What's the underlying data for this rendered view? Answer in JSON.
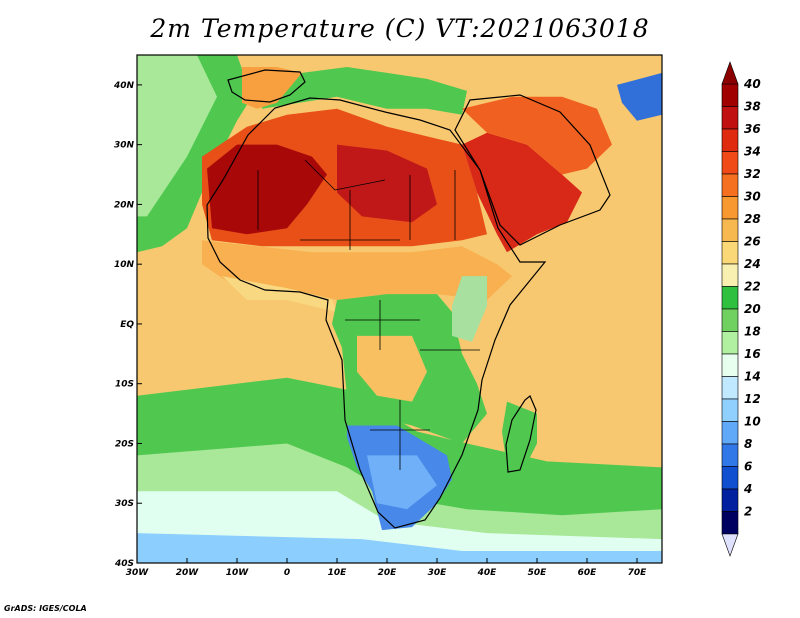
{
  "title": "2m Temperature (C) VT:2021063018",
  "credit": "GrADS: IGES/COLA",
  "map": {
    "lon_range": [
      -30,
      75
    ],
    "lat_range": [
      -40,
      45
    ],
    "lon_ticks": [
      {
        "value": -30,
        "label": "30W"
      },
      {
        "value": -20,
        "label": "20W"
      },
      {
        "value": -10,
        "label": "10W"
      },
      {
        "value": 0,
        "label": "0"
      },
      {
        "value": 10,
        "label": "10E"
      },
      {
        "value": 20,
        "label": "20E"
      },
      {
        "value": 30,
        "label": "30E"
      },
      {
        "value": 40,
        "label": "40E"
      },
      {
        "value": 50,
        "label": "50E"
      },
      {
        "value": 60,
        "label": "60E"
      },
      {
        "value": 70,
        "label": "70E"
      }
    ],
    "lat_ticks": [
      {
        "value": 40,
        "label": "40N"
      },
      {
        "value": 30,
        "label": "30N"
      },
      {
        "value": 20,
        "label": "20N"
      },
      {
        "value": 10,
        "label": "10N"
      },
      {
        "value": 0,
        "label": "EQ"
      },
      {
        "value": -10,
        "label": "10S"
      },
      {
        "value": -20,
        "label": "20S"
      },
      {
        "value": -30,
        "label": "30S"
      },
      {
        "value": -40,
        "label": "40S"
      }
    ]
  },
  "colorbar": {
    "labels": [
      "40",
      "38",
      "36",
      "34",
      "32",
      "30",
      "28",
      "26",
      "24",
      "22",
      "20",
      "18",
      "16",
      "14",
      "12",
      "10",
      "8",
      "6",
      "4",
      "2"
    ],
    "colors_top_to_bottom": [
      "#a00000",
      "#c01010",
      "#e02a10",
      "#f04a18",
      "#f57020",
      "#f89830",
      "#f8b850",
      "#fad878",
      "#f8f0b0",
      "#30c040",
      "#70d060",
      "#b0f0a0",
      "#e8fff0",
      "#c0e8ff",
      "#90d0ff",
      "#60a8f8",
      "#3078e8",
      "#1050d0",
      "#0020a0",
      "#000060"
    ],
    "top_arrow_color": "#8b0000",
    "bottom_arrow_color": "#e0e0ff"
  },
  "regions": [
    {
      "id": "ocean-base",
      "color": "#f8c870",
      "points": [
        [
          -30,
          45
        ],
        [
          75,
          45
        ],
        [
          75,
          -40
        ],
        [
          -30,
          -40
        ]
      ]
    },
    {
      "id": "south-cool-1",
      "color": "#50c850",
      "points": [
        [
          -30,
          -12
        ],
        [
          0,
          -9
        ],
        [
          12,
          -11
        ],
        [
          18,
          -14
        ],
        [
          26,
          -18
        ],
        [
          36,
          -20
        ],
        [
          52,
          -23
        ],
        [
          75,
          -24
        ],
        [
          75,
          -40
        ],
        [
          -30,
          -40
        ]
      ]
    },
    {
      "id": "south-cool-2",
      "color": "#a8e898",
      "points": [
        [
          -30,
          -22
        ],
        [
          0,
          -20
        ],
        [
          12,
          -24
        ],
        [
          22,
          -29
        ],
        [
          36,
          -31
        ],
        [
          55,
          -32
        ],
        [
          75,
          -31
        ],
        [
          75,
          -40
        ],
        [
          -30,
          -40
        ]
      ]
    },
    {
      "id": "south-cool-3",
      "color": "#e0fff0",
      "points": [
        [
          -30,
          -28
        ],
        [
          10,
          -28
        ],
        [
          20,
          -33
        ],
        [
          40,
          -35
        ],
        [
          75,
          -36
        ],
        [
          75,
          -40
        ],
        [
          -30,
          -40
        ]
      ]
    },
    {
      "id": "south-cool-4",
      "color": "#8ccfff",
      "points": [
        [
          -30,
          -35
        ],
        [
          15,
          -36
        ],
        [
          35,
          -38
        ],
        [
          75,
          -38
        ],
        [
          75,
          -40
        ],
        [
          -30,
          -40
        ]
      ]
    },
    {
      "id": "atlantic-north-green",
      "color": "#50c850",
      "points": [
        [
          -30,
          45
        ],
        [
          -10,
          45
        ],
        [
          -7,
          38
        ],
        [
          -10,
          34
        ],
        [
          -16,
          24
        ],
        [
          -20,
          16
        ],
        [
          -25,
          13
        ],
        [
          -30,
          12
        ]
      ]
    },
    {
      "id": "atlantic-north-light",
      "color": "#a8e898",
      "points": [
        [
          -30,
          45
        ],
        [
          -18,
          45
        ],
        [
          -14,
          38
        ],
        [
          -20,
          28
        ],
        [
          -28,
          18
        ],
        [
          -30,
          18
        ]
      ]
    },
    {
      "id": "mediterranean",
      "color": "#50c850",
      "points": [
        [
          -5,
          36
        ],
        [
          10,
          38
        ],
        [
          20,
          36
        ],
        [
          28,
          36
        ],
        [
          35,
          35
        ],
        [
          36,
          39
        ],
        [
          28,
          41
        ],
        [
          20,
          42
        ],
        [
          12,
          43
        ],
        [
          3,
          42
        ],
        [
          -5,
          37
        ]
      ]
    },
    {
      "id": "iberia",
      "color": "#f8a040",
      "points": [
        [
          -9,
          43
        ],
        [
          -2,
          43
        ],
        [
          3,
          42
        ],
        [
          0,
          39
        ],
        [
          -2,
          37
        ],
        [
          -6,
          36
        ],
        [
          -9,
          37
        ]
      ]
    },
    {
      "id": "sahara",
      "color": "#e85018",
      "points": [
        [
          -17,
          28
        ],
        [
          -8,
          33
        ],
        [
          0,
          35
        ],
        [
          10,
          36
        ],
        [
          20,
          33
        ],
        [
          30,
          31
        ],
        [
          35,
          30
        ],
        [
          38,
          22
        ],
        [
          40,
          15
        ],
        [
          35,
          14
        ],
        [
          25,
          13
        ],
        [
          15,
          13
        ],
        [
          5,
          13
        ],
        [
          -5,
          13
        ],
        [
          -15,
          14
        ],
        [
          -17,
          20
        ]
      ]
    },
    {
      "id": "sahara-core-west",
      "color": "#a80808",
      "points": [
        [
          -16,
          26
        ],
        [
          -10,
          30
        ],
        [
          -2,
          30
        ],
        [
          5,
          28
        ],
        [
          8,
          25
        ],
        [
          4,
          20
        ],
        [
          0,
          16
        ],
        [
          -8,
          15
        ],
        [
          -15,
          16
        ]
      ]
    },
    {
      "id": "sahara-core-east",
      "color": "#c01818",
      "points": [
        [
          10,
          30
        ],
        [
          20,
          29
        ],
        [
          28,
          26
        ],
        [
          30,
          20
        ],
        [
          25,
          17
        ],
        [
          15,
          18
        ],
        [
          10,
          22
        ]
      ]
    },
    {
      "id": "arabia",
      "color": "#d82818",
      "points": [
        [
          35,
          30
        ],
        [
          40,
          32
        ],
        [
          48,
          30
        ],
        [
          55,
          25
        ],
        [
          59,
          22
        ],
        [
          56,
          17
        ],
        [
          50,
          15
        ],
        [
          44,
          12
        ],
        [
          42,
          15
        ],
        [
          38,
          22
        ]
      ]
    },
    {
      "id": "mideast-north",
      "color": "#f06020",
      "points": [
        [
          35,
          36
        ],
        [
          45,
          38
        ],
        [
          55,
          38
        ],
        [
          62,
          36
        ],
        [
          65,
          30
        ],
        [
          60,
          26
        ],
        [
          55,
          25
        ],
        [
          48,
          30
        ],
        [
          40,
          32
        ]
      ]
    },
    {
      "id": "sahel",
      "color": "#f8b050",
      "points": [
        [
          -17,
          14
        ],
        [
          5,
          12
        ],
        [
          15,
          12
        ],
        [
          25,
          12
        ],
        [
          35,
          13
        ],
        [
          42,
          10
        ],
        [
          45,
          8
        ],
        [
          40,
          4
        ],
        [
          30,
          5
        ],
        [
          20,
          5
        ],
        [
          10,
          4
        ],
        [
          0,
          6
        ],
        [
          -10,
          6
        ],
        [
          -17,
          10
        ]
      ]
    },
    {
      "id": "gulf-guinea-coast",
      "color": "#f8d880",
      "points": [
        [
          -13,
          8
        ],
        [
          0,
          6
        ],
        [
          9,
          4
        ],
        [
          10,
          2
        ],
        [
          0,
          4
        ],
        [
          -8,
          4
        ]
      ]
    },
    {
      "id": "central-africa",
      "color": "#50c850",
      "points": [
        [
          10,
          4
        ],
        [
          20,
          5
        ],
        [
          30,
          5
        ],
        [
          33,
          2
        ],
        [
          35,
          -5
        ],
        [
          38,
          -10
        ],
        [
          40,
          -15
        ],
        [
          35,
          -20
        ],
        [
          25,
          -17
        ],
        [
          15,
          -15
        ],
        [
          12,
          -12
        ],
        [
          11,
          -4
        ],
        [
          9,
          0
        ]
      ]
    },
    {
      "id": "congo-warm",
      "color": "#f8c060",
      "points": [
        [
          14,
          -2
        ],
        [
          25,
          -2
        ],
        [
          28,
          -8
        ],
        [
          25,
          -13
        ],
        [
          18,
          -12
        ],
        [
          14,
          -8
        ]
      ]
    },
    {
      "id": "east-africa-highlands",
      "color": "#a8e0a0",
      "points": [
        [
          35,
          8
        ],
        [
          40,
          8
        ],
        [
          40,
          3
        ],
        [
          37,
          -3
        ],
        [
          33,
          -2
        ],
        [
          33,
          3
        ]
      ]
    },
    {
      "id": "southern-africa",
      "color": "#4888e8",
      "points": [
        [
          12,
          -17
        ],
        [
          22,
          -17
        ],
        [
          32,
          -22
        ],
        [
          33,
          -26
        ],
        [
          30,
          -30
        ],
        [
          25,
          -34
        ],
        [
          19,
          -34.5
        ],
        [
          17,
          -28
        ],
        [
          14,
          -24
        ],
        [
          12,
          -19
        ]
      ]
    },
    {
      "id": "southern-africa-inner",
      "color": "#70b0f8",
      "points": [
        [
          16,
          -22
        ],
        [
          26,
          -22
        ],
        [
          30,
          -27
        ],
        [
          24,
          -31
        ],
        [
          18,
          -30
        ]
      ]
    },
    {
      "id": "madagascar",
      "color": "#50c850",
      "points": [
        [
          44,
          -13
        ],
        [
          50,
          -15
        ],
        [
          50,
          -20
        ],
        [
          47,
          -25
        ],
        [
          44,
          -24
        ],
        [
          43,
          -18
        ]
      ]
    },
    {
      "id": "iran-cold",
      "color": "#3070d8",
      "points": [
        [
          66,
          40
        ],
        [
          75,
          42
        ],
        [
          75,
          35
        ],
        [
          70,
          34
        ],
        [
          67,
          37
        ]
      ]
    }
  ]
}
